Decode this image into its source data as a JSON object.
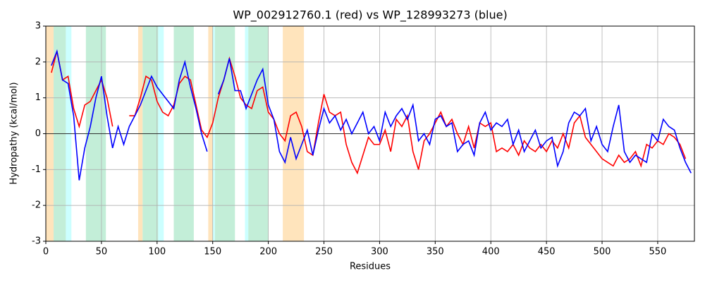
{
  "chart_data": {
    "type": "line",
    "title": "WP_002912760.1 (red) vs WP_128993273 (blue)",
    "xlabel": "Residues",
    "ylabel": "Hydropathy (kcal/mol)",
    "xlim": [
      0,
      583
    ],
    "ylim": [
      -3,
      3
    ],
    "xticks": [
      0,
      50,
      100,
      150,
      200,
      250,
      300,
      350,
      400,
      450,
      500,
      550
    ],
    "yticks": [
      -3,
      -2,
      -1,
      0,
      1,
      2,
      3
    ],
    "grid": true,
    "hline": 0,
    "spans": [
      {
        "start": 0,
        "end": 7,
        "color": "#ffe4bc"
      },
      {
        "start": 7,
        "end": 18,
        "color": "#c3eed8"
      },
      {
        "start": 18,
        "end": 23,
        "color": "#ccffff"
      },
      {
        "start": 36,
        "end": 54,
        "color": "#c3eed8"
      },
      {
        "start": 83,
        "end": 87,
        "color": "#ffe4bc"
      },
      {
        "start": 87,
        "end": 101,
        "color": "#c3eed8"
      },
      {
        "start": 101,
        "end": 106,
        "color": "#ccffff"
      },
      {
        "start": 115,
        "end": 133,
        "color": "#c3eed8"
      },
      {
        "start": 146,
        "end": 150,
        "color": "#ffe4bc"
      },
      {
        "start": 150,
        "end": 152,
        "color": "#ccffff"
      },
      {
        "start": 152,
        "end": 170,
        "color": "#c3eed8"
      },
      {
        "start": 179,
        "end": 182,
        "color": "#ccffff"
      },
      {
        "start": 182,
        "end": 200,
        "color": "#c3eed8"
      },
      {
        "start": 213,
        "end": 232,
        "color": "#ffe4bc"
      }
    ],
    "x": [
      5,
      10,
      15,
      20,
      25,
      30,
      35,
      40,
      45,
      50,
      55,
      60,
      65,
      70,
      75,
      80,
      85,
      90,
      95,
      100,
      105,
      110,
      115,
      120,
      125,
      130,
      135,
      140,
      145,
      150,
      155,
      160,
      165,
      170,
      175,
      180,
      185,
      190,
      195,
      200,
      205,
      210,
      215,
      220,
      225,
      230,
      235,
      240,
      245,
      250,
      255,
      260,
      265,
      270,
      275,
      280,
      285,
      290,
      295,
      300,
      305,
      310,
      315,
      320,
      325,
      330,
      335,
      340,
      345,
      350,
      355,
      360,
      365,
      370,
      375,
      380,
      385,
      390,
      395,
      400,
      405,
      410,
      415,
      420,
      425,
      430,
      435,
      440,
      445,
      450,
      455,
      460,
      465,
      470,
      475,
      480,
      485,
      490,
      495,
      500,
      505,
      510,
      515,
      520,
      525,
      530,
      535,
      540,
      545,
      550,
      555,
      560,
      565,
      570,
      575,
      580
    ],
    "series": [
      {
        "color": "#ff0000",
        "values": [
          1.7,
          2.3,
          1.5,
          1.6,
          0.7,
          0.2,
          0.8,
          0.9,
          1.2,
          1.5,
          1.0,
          0.2,
          null,
          null,
          0.5,
          0.5,
          1.0,
          1.6,
          1.5,
          0.9,
          0.6,
          0.5,
          0.8,
          1.4,
          1.6,
          1.5,
          0.8,
          0.1,
          -0.1,
          0.3,
          1.0,
          1.5,
          2.1,
          1.6,
          1.0,
          0.8,
          0.7,
          1.2,
          1.3,
          0.6,
          0.4,
          0.0,
          -0.2,
          0.5,
          0.6,
          0.2,
          -0.5,
          -0.6,
          0.3,
          1.1,
          0.6,
          0.5,
          0.6,
          -0.3,
          -0.8,
          -1.1,
          -0.6,
          -0.1,
          -0.3,
          -0.3,
          0.1,
          -0.5,
          0.4,
          0.2,
          0.5,
          -0.5,
          -1.0,
          -0.2,
          0.0,
          0.3,
          0.6,
          0.2,
          0.4,
          0.0,
          -0.3,
          0.2,
          -0.4,
          0.3,
          0.2,
          0.3,
          -0.5,
          -0.4,
          -0.5,
          -0.3,
          -0.6,
          -0.2,
          -0.4,
          -0.5,
          -0.3,
          -0.5,
          -0.2,
          -0.4,
          0.0,
          -0.4,
          0.3,
          0.5,
          -0.1,
          -0.3,
          -0.5,
          -0.7,
          -0.8,
          -0.9,
          -0.6,
          -0.8,
          -0.7,
          -0.5,
          -0.9,
          -0.3,
          -0.4,
          -0.2,
          -0.3,
          0.0,
          -0.1,
          -0.3,
          -0.7,
          null
        ]
      },
      {
        "color": "#0000ff",
        "values": [
          1.9,
          2.3,
          1.5,
          1.4,
          0.5,
          -1.3,
          -0.4,
          0.2,
          1.0,
          1.6,
          0.5,
          -0.4,
          0.2,
          -0.3,
          0.2,
          0.5,
          0.8,
          1.2,
          1.6,
          1.3,
          1.1,
          0.9,
          0.7,
          1.5,
          2.0,
          1.3,
          0.7,
          0.0,
          -0.5,
          null,
          1.1,
          1.5,
          2.1,
          1.2,
          1.2,
          0.7,
          1.1,
          1.5,
          1.8,
          0.8,
          0.4,
          -0.5,
          -0.8,
          -0.1,
          -0.7,
          -0.3,
          0.1,
          -0.6,
          0.1,
          0.7,
          0.3,
          0.5,
          0.1,
          0.4,
          0.0,
          0.3,
          0.6,
          0.0,
          0.2,
          -0.2,
          0.6,
          0.2,
          0.5,
          0.7,
          0.4,
          0.8,
          -0.2,
          0.0,
          -0.3,
          0.4,
          0.5,
          0.2,
          0.3,
          -0.5,
          -0.3,
          -0.2,
          -0.6,
          0.3,
          0.6,
          0.1,
          0.3,
          0.2,
          0.4,
          -0.3,
          0.1,
          -0.5,
          -0.2,
          0.1,
          -0.4,
          -0.2,
          -0.1,
          -0.9,
          -0.5,
          0.3,
          0.6,
          0.5,
          0.7,
          -0.2,
          0.2,
          -0.3,
          -0.5,
          0.2,
          0.8,
          -0.5,
          -0.8,
          -0.6,
          -0.7,
          -0.8,
          0.0,
          -0.2,
          0.4,
          0.2,
          0.1,
          -0.4,
          -0.8,
          -1.1
        ]
      }
    ]
  }
}
